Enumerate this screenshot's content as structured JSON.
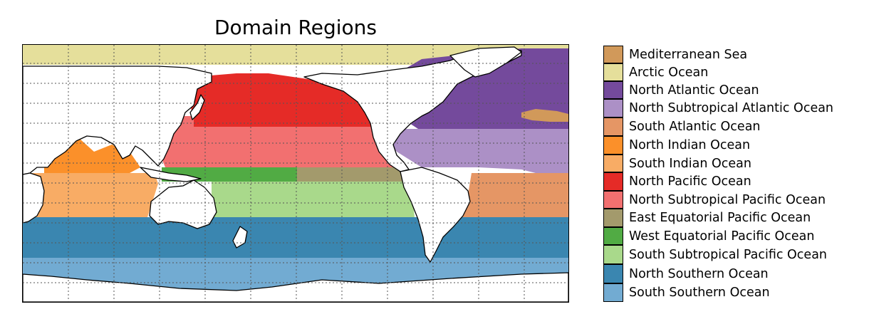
{
  "title": "Domain Regions",
  "map": {
    "projection": "equirectangular",
    "gridlines": "dotted",
    "land_color": "#ffffff",
    "coastline_color": "#000000"
  },
  "regions": [
    {
      "name": "Mediterranean Sea",
      "color": "#d1995a"
    },
    {
      "name": "Arctic Ocean",
      "color": "#e5df9b"
    },
    {
      "name": "North Atlantic Ocean",
      "color": "#744a9c"
    },
    {
      "name": "North Subtropical Atlantic Ocean",
      "color": "#ac90c6"
    },
    {
      "name": "South Atlantic Ocean",
      "color": "#e59665"
    },
    {
      "name": "North Indian Ocean",
      "color": "#fb902a"
    },
    {
      "name": "South Indian Ocean",
      "color": "#f8ac65"
    },
    {
      "name": "North Pacific Ocean",
      "color": "#e52b27"
    },
    {
      "name": "North Subtropical Pacific Ocean",
      "color": "#f27070"
    },
    {
      "name": "East Equatorial Pacific Ocean",
      "color": "#a39a6c"
    },
    {
      "name": "West Equatorial Pacific Ocean",
      "color": "#51ab44"
    },
    {
      "name": "South Subtropical Pacific Ocean",
      "color": "#a9d98b"
    },
    {
      "name": "North Southern Ocean",
      "color": "#3a86b0"
    },
    {
      "name": "South Southern Ocean",
      "color": "#72abd2"
    }
  ]
}
